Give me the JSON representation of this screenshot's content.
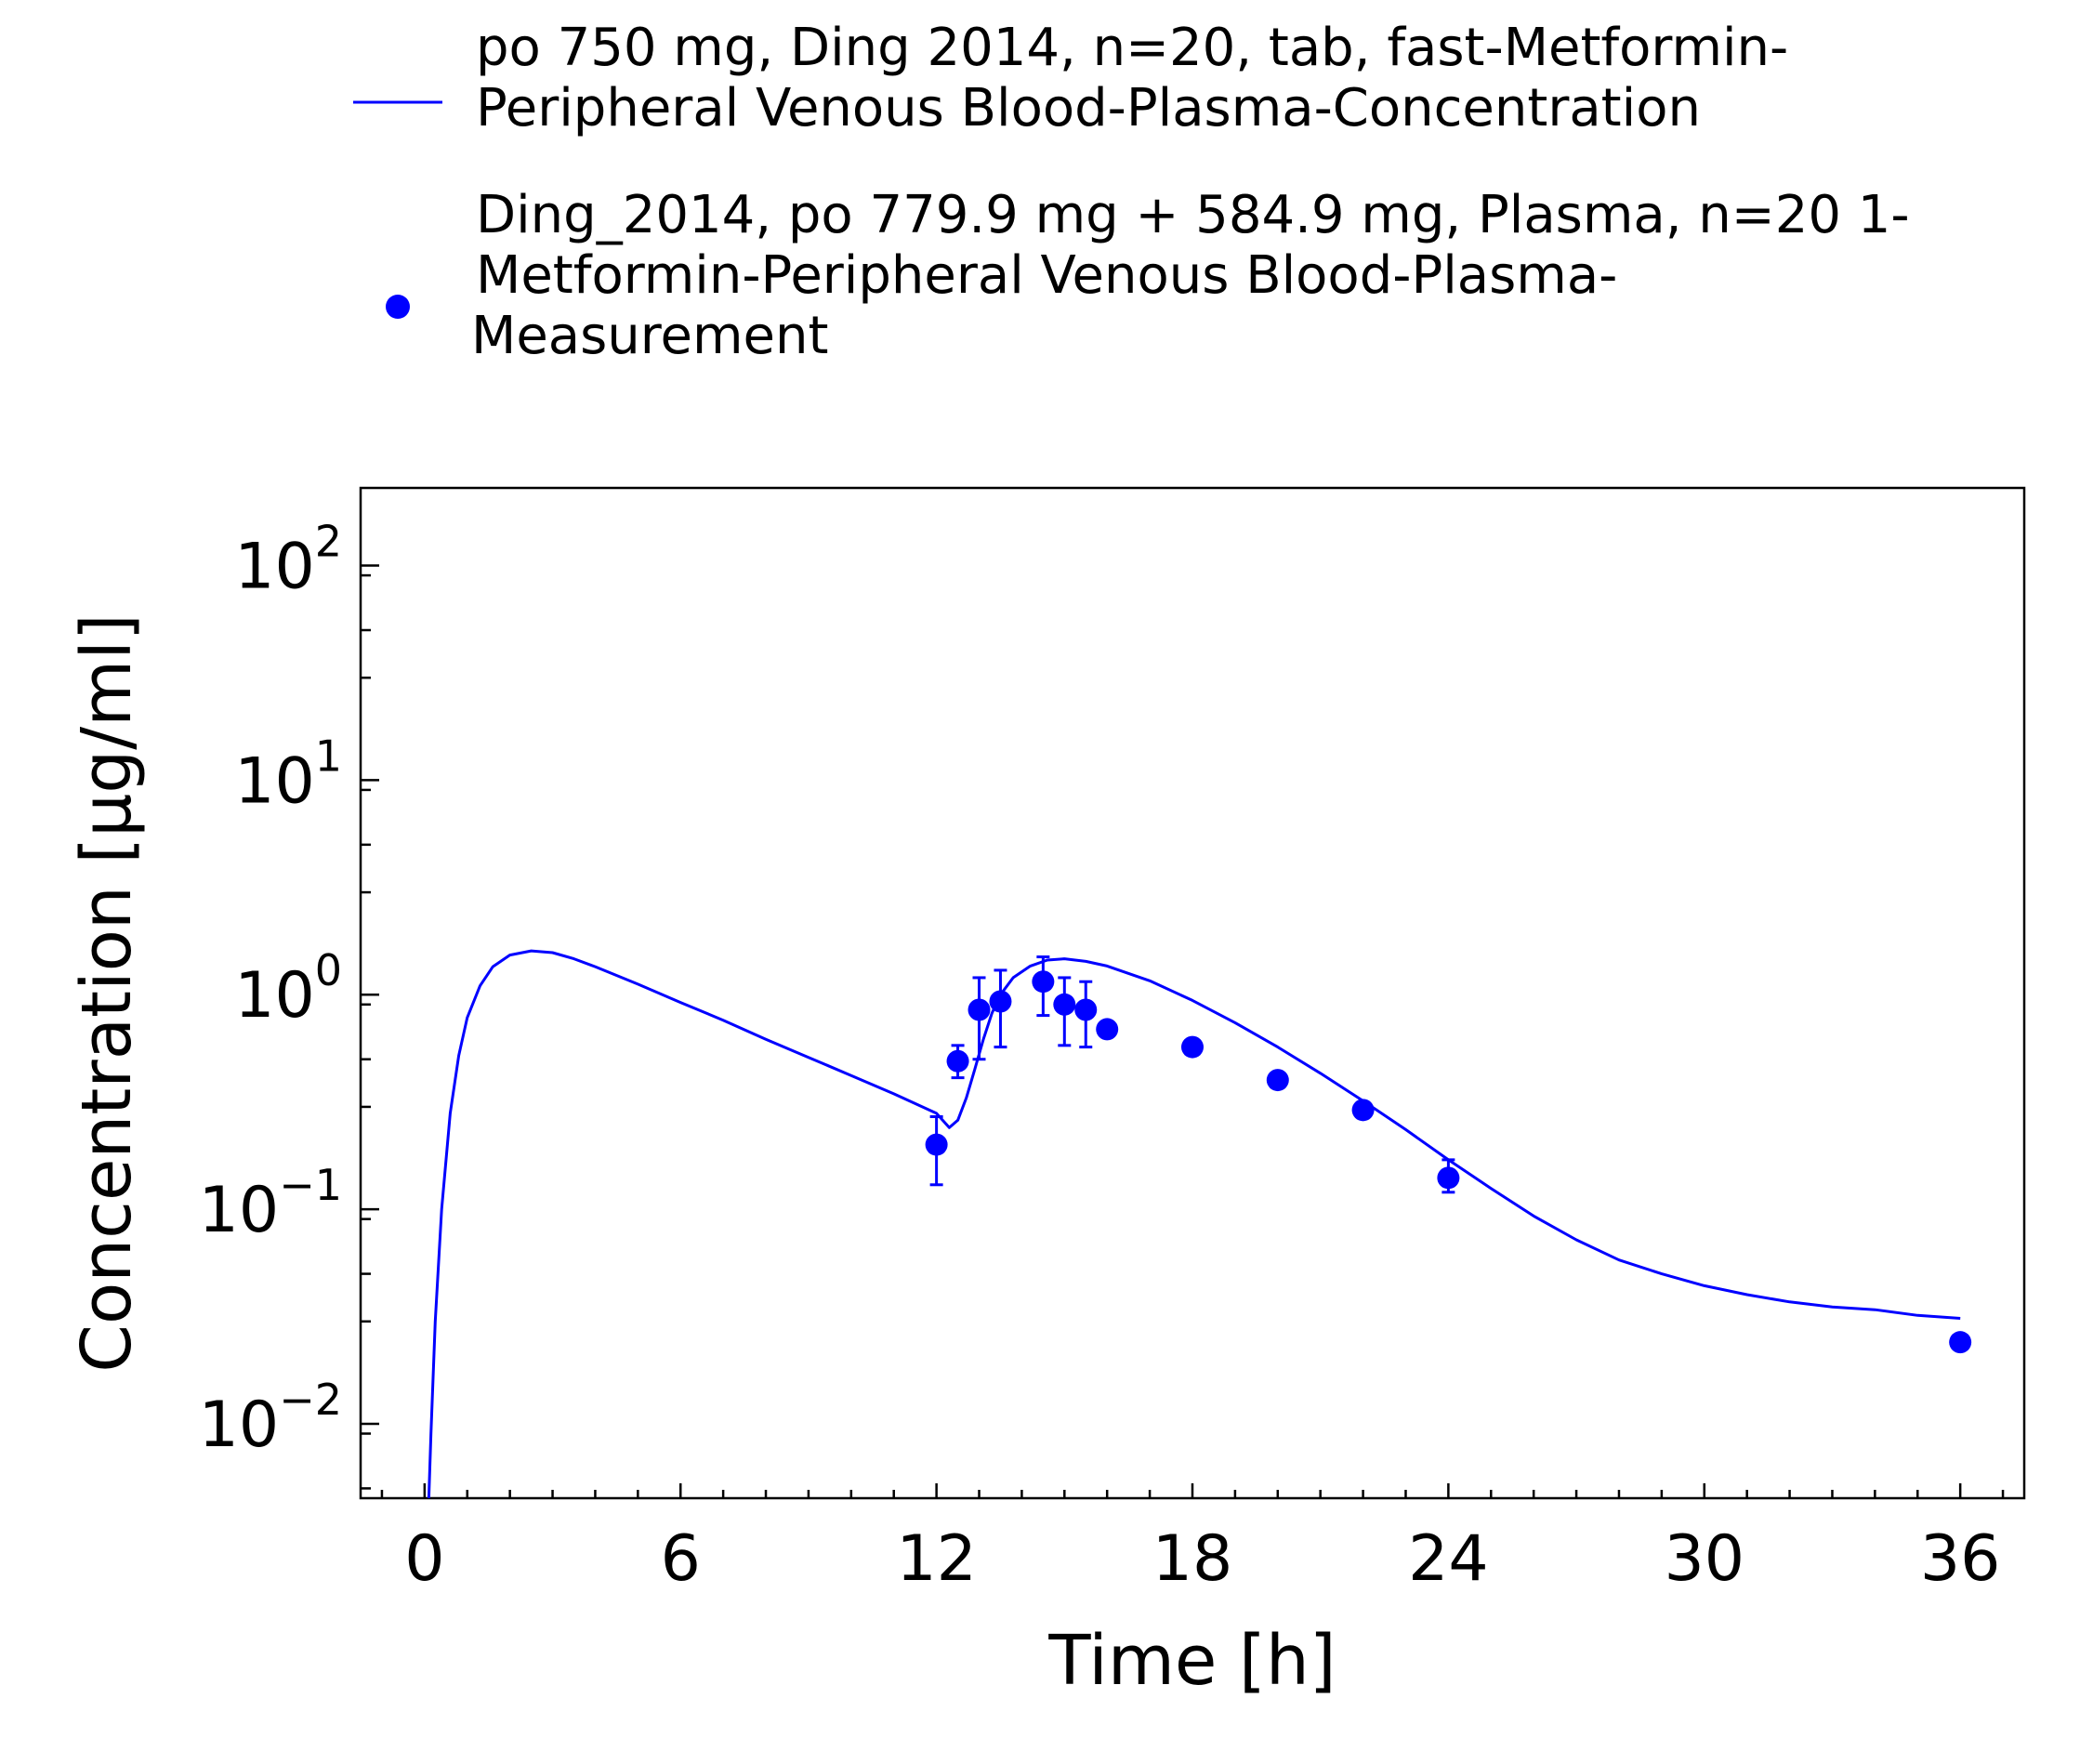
{
  "chart_data": {
    "type": "line",
    "title": "",
    "xlabel": "Time [h]",
    "ylabel": "Concentration [µg/ml]",
    "xlim": [
      -1.5,
      37.5
    ],
    "ylim": [
      0.0045,
      230
    ],
    "yscale": "log",
    "grid": false,
    "legend_position": "top",
    "x_ticks": [
      0,
      6,
      12,
      18,
      24,
      30,
      36
    ],
    "y_ticks": [
      {
        "value": 0.01,
        "base": "10",
        "exp": "−2"
      },
      {
        "value": 0.1,
        "base": "10",
        "exp": "−1"
      },
      {
        "value": 1,
        "base": "10",
        "exp": "0"
      },
      {
        "value": 10,
        "base": "10",
        "exp": "1"
      },
      {
        "value": 100,
        "base": "10",
        "exp": "2"
      }
    ],
    "series": [
      {
        "name": "po 750 mg, Ding 2014, n=20, tab, fast-Metformin-Peripheral Venous Blood-Plasma-Concentration",
        "legend_lines": [
          "po 750 mg, Ding 2014, n=20, tab, fast-Metformin-",
          "Peripheral Venous Blood-Plasma-Concentration"
        ],
        "style": "line",
        "color": "#0000ff",
        "x": [
          0.1,
          0.15,
          0.25,
          0.4,
          0.6,
          0.8,
          1.0,
          1.3,
          1.6,
          2.0,
          2.5,
          3.0,
          3.5,
          4.0,
          5.0,
          6.0,
          7.0,
          8.0,
          9.0,
          10.0,
          11.0,
          12.0,
          12.3,
          12.5,
          12.7,
          12.9,
          13.1,
          13.3,
          13.5,
          13.8,
          14.2,
          14.6,
          15.0,
          15.5,
          16.0,
          17.0,
          18.0,
          19.0,
          20.0,
          21.0,
          22.0,
          23.0,
          24.0,
          25.0,
          26.0,
          27.0,
          28.0,
          29.0,
          30.0,
          31.0,
          32.0,
          33.0,
          34.0,
          35.0,
          36.0
        ],
        "y": [
          0.0045,
          0.009,
          0.03,
          0.1,
          0.28,
          0.52,
          0.78,
          1.1,
          1.35,
          1.53,
          1.6,
          1.57,
          1.47,
          1.35,
          1.12,
          0.92,
          0.76,
          0.62,
          0.51,
          0.42,
          0.345,
          0.28,
          0.24,
          0.26,
          0.33,
          0.45,
          0.62,
          0.82,
          1.0,
          1.2,
          1.36,
          1.45,
          1.47,
          1.43,
          1.36,
          1.16,
          0.94,
          0.74,
          0.57,
          0.43,
          0.32,
          0.235,
          0.17,
          0.125,
          0.093,
          0.072,
          0.058,
          0.05,
          0.044,
          0.04,
          0.037,
          0.035,
          0.034,
          0.032,
          0.031
        ]
      },
      {
        "name": "Ding_2014, po 779.9 mg + 584.9 mg, Plasma, n=20 1-Metformin-Peripheral Venous Blood-Plasma-Measurement",
        "legend_lines": [
          "Ding_2014, po 779.9 mg + 584.9 mg, Plasma, n=20 1-",
          "Metformin-Peripheral Venous Blood-Plasma-",
          "Measurement"
        ],
        "style": "scatter",
        "color": "#0000ff",
        "x": [
          12.0,
          12.5,
          13.0,
          13.5,
          14.5,
          15.0,
          15.5,
          16.0,
          18.0,
          20.0,
          22.0,
          24.0,
          36.0
        ],
        "y": [
          0.2,
          0.49,
          0.85,
          0.93,
          1.15,
          0.9,
          0.85,
          0.69,
          0.57,
          0.4,
          0.29,
          0.14,
          0.024
        ],
        "err_low": [
          0.13,
          0.41,
          0.5,
          0.57,
          0.8,
          0.58,
          0.57,
          null,
          null,
          null,
          null,
          0.12,
          null
        ],
        "err_high": [
          0.27,
          0.58,
          1.2,
          1.3,
          1.5,
          1.2,
          1.15,
          null,
          null,
          null,
          null,
          0.17,
          null
        ]
      }
    ]
  }
}
